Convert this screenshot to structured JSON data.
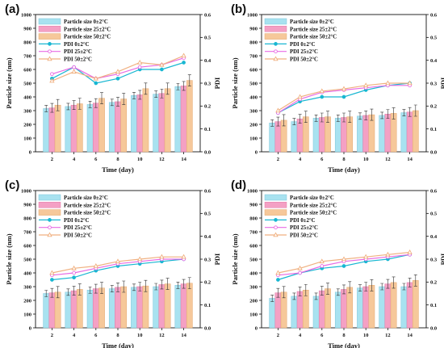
{
  "colors": {
    "bar": [
      "#a8e2f0",
      "#f4a0c4",
      "#f6c89a"
    ],
    "bar_edge": [
      "#7cc6da",
      "#e27aa8",
      "#e5a86e"
    ],
    "line": [
      "#19b7d2",
      "#e86be4",
      "#f0b080"
    ]
  },
  "chart_data": [
    {
      "panel": "(a)",
      "type": "bar+line",
      "xlabel": "Time (day)",
      "ylabel_left": "Particle size (nm)",
      "ylabel_right": "PDI",
      "x": [
        2,
        4,
        6,
        8,
        10,
        12,
        14
      ],
      "x_ticks": [
        "2",
        "4",
        "6",
        "8",
        "10",
        "12",
        "14"
      ],
      "ylim_left": [
        0,
        1000
      ],
      "yticks_left": [
        "0",
        "100",
        "200",
        "300",
        "400",
        "500",
        "600",
        "700",
        "800",
        "900",
        "1000"
      ],
      "ylim_right": [
        0,
        0.6
      ],
      "yticks_right": [
        "0.0",
        "0.1",
        "0.2",
        "0.3",
        "0.4",
        "0.5",
        "0.6"
      ],
      "bar_series": [
        {
          "name": "Particle size 0±2°C",
          "values": [
            315,
            330,
            345,
            360,
            410,
            420,
            475
          ]
        },
        {
          "name": "Particle size 25±2°C",
          "values": [
            320,
            340,
            355,
            365,
            415,
            425,
            480
          ]
        },
        {
          "name": "Particle size 50±2°C",
          "values": [
            340,
            350,
            390,
            385,
            460,
            460,
            520
          ]
        }
      ],
      "line_series": [
        {
          "name": "PDI 0±2°C",
          "values": [
            0.32,
            0.37,
            0.3,
            0.32,
            0.36,
            0.36,
            0.39
          ]
        },
        {
          "name": "PDI 25±2°C",
          "values": [
            0.34,
            0.37,
            0.32,
            0.34,
            0.37,
            0.38,
            0.41
          ]
        },
        {
          "name": "PDI 50±2°C",
          "values": [
            0.31,
            0.35,
            0.32,
            0.35,
            0.39,
            0.38,
            0.42
          ]
        }
      ]
    },
    {
      "panel": "(b)",
      "type": "bar+line",
      "xlabel": "Time (day)",
      "ylabel_left": "Particle size (nm)",
      "ylabel_right": "PDI",
      "x": [
        2,
        4,
        6,
        8,
        10,
        12,
        14
      ],
      "x_ticks": [
        "2",
        "4",
        "6",
        "8",
        "10",
        "12",
        "14"
      ],
      "ylim_left": [
        0,
        1000
      ],
      "yticks_left": [
        "0",
        "100",
        "200",
        "300",
        "400",
        "500",
        "600",
        "700",
        "800",
        "900",
        "1000"
      ],
      "ylim_right": [
        0,
        0.6
      ],
      "yticks_right": [
        "0.0",
        "0.1",
        "0.2",
        "0.3",
        "0.4",
        "0.5",
        "0.6"
      ],
      "bar_series": [
        {
          "name": "Particle size 0±2°C",
          "values": [
            210,
            220,
            245,
            245,
            260,
            265,
            285
          ]
        },
        {
          "name": "Particle size 25±2°C",
          "values": [
            220,
            240,
            250,
            250,
            265,
            275,
            290
          ]
        },
        {
          "name": "Particle size 50±2°C",
          "values": [
            230,
            255,
            255,
            255,
            270,
            280,
            300
          ]
        }
      ],
      "line_series": [
        {
          "name": "PDI 0±2°C",
          "values": [
            0.17,
            0.22,
            0.24,
            0.24,
            0.27,
            0.29,
            0.3
          ]
        },
        {
          "name": "PDI 25±2°C",
          "values": [
            0.17,
            0.23,
            0.26,
            0.27,
            0.28,
            0.29,
            0.29
          ]
        },
        {
          "name": "PDI 50±2°C",
          "values": [
            0.18,
            0.24,
            0.265,
            0.275,
            0.29,
            0.3,
            0.3
          ]
        }
      ]
    },
    {
      "panel": "(c)",
      "type": "bar+line",
      "xlabel": "Time (day)",
      "ylabel_left": "Particle size (nm)",
      "ylabel_right": "PDI",
      "x": [
        2,
        4,
        6,
        8,
        10,
        12,
        14
      ],
      "x_ticks": [
        "2",
        "4",
        "6",
        "8",
        "10",
        "12",
        "14"
      ],
      "ylim_left": [
        0,
        1000
      ],
      "yticks_left": [
        "0",
        "100",
        "200",
        "300",
        "400",
        "500",
        "600",
        "700",
        "800",
        "900",
        "1000"
      ],
      "ylim_right": [
        0,
        0.6
      ],
      "yticks_right": [
        "0.0",
        "0.1",
        "0.2",
        "0.3",
        "0.4",
        "0.5",
        "0.6"
      ],
      "bar_series": [
        {
          "name": "Particle size 0±2°C",
          "values": [
            250,
            260,
            275,
            285,
            295,
            300,
            310
          ]
        },
        {
          "name": "Particle size 25±2°C",
          "values": [
            255,
            270,
            285,
            295,
            300,
            315,
            320
          ]
        },
        {
          "name": "Particle size 50±2°C",
          "values": [
            260,
            280,
            290,
            300,
            305,
            320,
            325
          ]
        }
      ],
      "line_series": [
        {
          "name": "PDI 0±2°C",
          "values": [
            0.21,
            0.22,
            0.25,
            0.27,
            0.28,
            0.29,
            0.3
          ]
        },
        {
          "name": "PDI 25±2°C",
          "values": [
            0.23,
            0.24,
            0.26,
            0.28,
            0.29,
            0.3,
            0.3
          ]
        },
        {
          "name": "PDI 50±2°C",
          "values": [
            0.24,
            0.26,
            0.27,
            0.29,
            0.3,
            0.31,
            0.31
          ]
        }
      ]
    },
    {
      "panel": "(d)",
      "type": "bar+line",
      "xlabel": "Time (day)",
      "ylabel_left": "Particle size (nm)",
      "ylabel_right": "PDI",
      "x": [
        2,
        4,
        6,
        8,
        10,
        12,
        14
      ],
      "x_ticks": [
        "2",
        "4",
        "6",
        "8",
        "10",
        "12",
        "14"
      ],
      "ylim_left": [
        0,
        1000
      ],
      "yticks_left": [
        "0",
        "100",
        "200",
        "300",
        "400",
        "500",
        "600",
        "700",
        "800",
        "900",
        "1000"
      ],
      "ylim_right": [
        0,
        0.6
      ],
      "yticks_right": [
        "0.0",
        "0.1",
        "0.2",
        "0.3",
        "0.4",
        "0.5",
        "0.6"
      ],
      "bar_series": [
        {
          "name": "Particle size 0±2°C",
          "values": [
            215,
            230,
            230,
            260,
            290,
            300,
            300
          ]
        },
        {
          "name": "Particle size 25±2°C",
          "values": [
            255,
            265,
            270,
            280,
            300,
            320,
            330
          ]
        },
        {
          "name": "Particle size 50±2°C",
          "values": [
            260,
            275,
            285,
            295,
            310,
            330,
            345
          ]
        }
      ],
      "line_series": [
        {
          "name": "PDI 0±2°C",
          "values": [
            0.21,
            0.24,
            0.26,
            0.27,
            0.29,
            0.3,
            0.32
          ]
        },
        {
          "name": "PDI 25±2°C",
          "values": [
            0.23,
            0.24,
            0.27,
            0.29,
            0.3,
            0.31,
            0.32
          ]
        },
        {
          "name": "PDI 50±2°C",
          "values": [
            0.24,
            0.26,
            0.29,
            0.3,
            0.31,
            0.32,
            0.33
          ]
        }
      ]
    }
  ]
}
